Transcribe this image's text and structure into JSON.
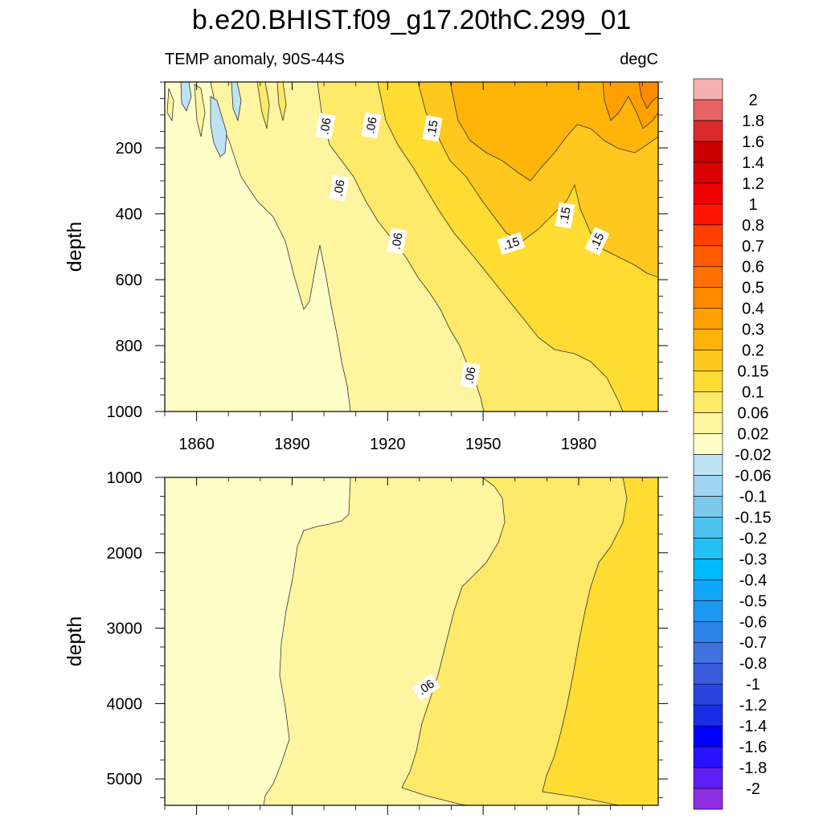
{
  "title": "b.e20.BHIST.f09_g17.20thC.299_01",
  "subtitle_left": "TEMP anomaly, 90S-44S",
  "subtitle_right": "degC",
  "colors": {
    "levels": [
      "#8e2ee6",
      "#5f1ef5",
      "#2a12ff",
      "#0000ff",
      "#1a2ee6",
      "#2a44e0",
      "#3a5cdc",
      "#3f72dd",
      "#2b84e8",
      "#1e97f2",
      "#12a6fc",
      "#00b8ff",
      "#22c0f4",
      "#4fc4f0",
      "#7cc9ec",
      "#9fd5f0",
      "#bde2f2",
      "#ffffc8",
      "#fff5a0",
      "#ffe968",
      "#ffdc32",
      "#ffc81e",
      "#ffb40a",
      "#ffa000",
      "#ff8a00",
      "#ff7000",
      "#ff5a00",
      "#ff4000",
      "#ff1400",
      "#f00000",
      "#dc0000",
      "#cc0000",
      "#dc2a2a",
      "#e86464",
      "#f5b0b0"
    ]
  },
  "chart_data": [
    {
      "type": "heatmap",
      "panel": "upper",
      "field": "TEMP anomaly",
      "region": "90S-44S",
      "units": "degC",
      "ylabel": "depth",
      "ylim": [
        0,
        1000
      ],
      "xlim": [
        1850,
        2005
      ],
      "x_ticks": [
        1860,
        1890,
        1920,
        1950,
        1980
      ],
      "y_ticks": [
        200,
        400,
        600,
        800,
        1000
      ],
      "contour_labels": [
        ".06",
        ".06",
        ".06",
        ".15",
        ".06",
        ".15",
        ".15",
        ".15",
        ".06"
      ],
      "regions": [
        {
          "level": 0.0,
          "xs": [
            1850,
            1905,
            1908,
            1850
          ],
          "ys": [
            120,
            380,
            1000,
            1000
          ]
        },
        {
          "level": 0.04,
          "points": [
            [
              1885,
              380
            ],
            [
              1890,
              250
            ],
            [
              1910,
              1000
            ],
            [
              1952,
              1000
            ]
          ]
        },
        {
          "level": 0.08,
          "points": [
            [
              1910,
              150
            ],
            [
              1950,
              800
            ],
            [
              1995,
              1000
            ]
          ]
        },
        {
          "level": 0.12,
          "points": [
            [
              1940,
              150
            ],
            [
              1995,
              500
            ]
          ]
        },
        {
          "level": 0.25,
          "points": [
            [
              1960,
              100
            ],
            [
              2005,
              300
            ]
          ]
        }
      ]
    },
    {
      "type": "heatmap",
      "panel": "lower",
      "field": "TEMP anomaly",
      "ylabel": "depth",
      "ylim": [
        1000,
        5350
      ],
      "xlim": [
        1850,
        2005
      ],
      "x_ticks": [
        1860,
        1890,
        1920,
        1950,
        1980
      ],
      "y_ticks": [
        1000,
        2000,
        3000,
        4000,
        5000
      ],
      "contour_labels": [
        ".06"
      ]
    }
  ],
  "colorbar": {
    "labels": [
      "2",
      "1.8",
      "1.6",
      "1.4",
      "1.2",
      "1",
      "0.8",
      "0.7",
      "0.6",
      "0.5",
      "0.4",
      "0.3",
      "0.2",
      "0.15",
      "0.1",
      "0.06",
      "0.02",
      "-0.02",
      "-0.06",
      "-0.1",
      "-0.15",
      "-0.2",
      "-0.3",
      "-0.4",
      "-0.5",
      "-0.6",
      "-0.7",
      "-0.8",
      "-1",
      "-1.2",
      "-1.4",
      "-1.6",
      "-1.8",
      "-2"
    ]
  }
}
